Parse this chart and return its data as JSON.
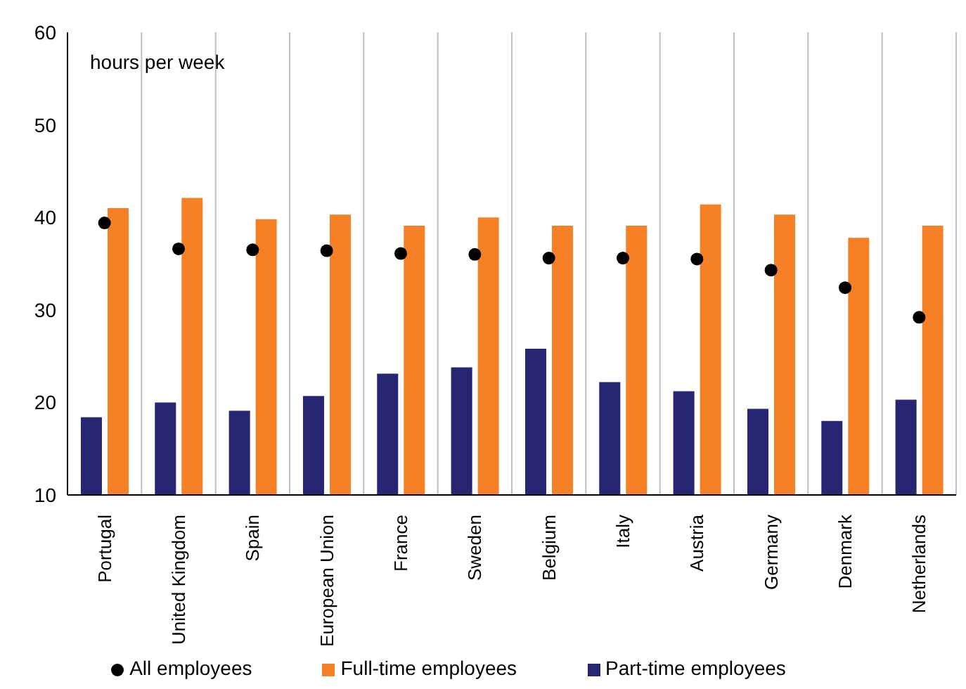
{
  "chart_data": {
    "type": "bar",
    "ylabel": "hours per week",
    "categories": [
      "Portugal",
      "United Kingdom",
      "Spain",
      "European Union",
      "France",
      "Sweden",
      "Belgium",
      "Italy",
      "Austria",
      "Germany",
      "Denmark",
      "Netherlands"
    ],
    "series": [
      {
        "name": "Part-time employees",
        "color": "#262673",
        "values": [
          18.4,
          20,
          19.1,
          20.7,
          23.1,
          23.8,
          25.8,
          22.2,
          21.2,
          19.3,
          18,
          20.3
        ]
      },
      {
        "name": "Full-time employees",
        "color": "#f58025",
        "values": [
          41,
          42.1,
          39.8,
          40.3,
          39.1,
          40,
          39.1,
          39.1,
          41.4,
          40.3,
          37.8,
          39.1
        ]
      },
      {
        "name": "All employees",
        "type": "scatter",
        "color": "#000000",
        "marker": "circle",
        "values": [
          39.4,
          36.6,
          36.5,
          36.4,
          36.1,
          36,
          35.6,
          35.6,
          35.5,
          34.3,
          32.4,
          29.2
        ]
      }
    ],
    "ylim": [
      10,
      60
    ],
    "yticks": [
      10,
      20,
      30,
      40,
      50,
      60
    ],
    "grid": "x",
    "legend": "bottom"
  }
}
